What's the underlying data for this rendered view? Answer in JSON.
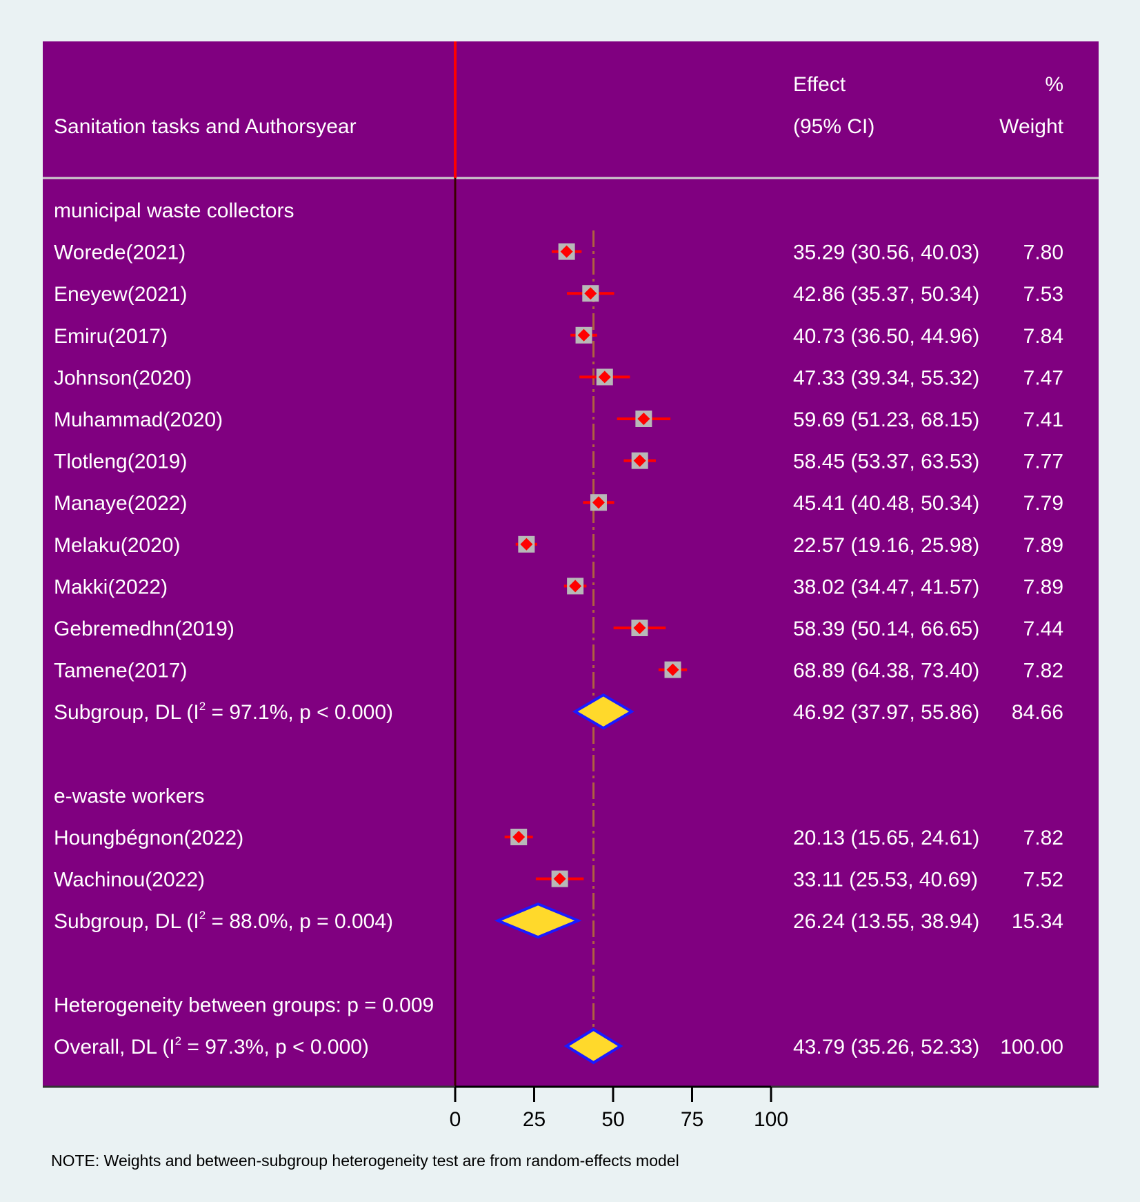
{
  "chart_data": {
    "type": "forest",
    "header": {
      "label_col": "Sanitation tasks and Authorsyear",
      "effect_line1": "Effect",
      "effect_line2": "(95% CI)",
      "weight_line1": "%",
      "weight_line2": "Weight"
    },
    "colors": {
      "plot_bg": "#800080",
      "page_bg": "#eaf2f3",
      "null_line": "#ff0000",
      "overall_line": "#b06040",
      "ci_line": "#ff0000",
      "weight_box": "#b8b8b8",
      "point": "#ff0000",
      "diamond_fill": "#ffd92b",
      "diamond_stroke": "#1a1aff",
      "text": "#ffffff"
    },
    "xaxis": {
      "min": 0,
      "max": 100,
      "ticks": [
        0,
        25,
        50,
        75,
        100
      ]
    },
    "overall_effect": 43.79,
    "rows": [
      {
        "type": "group",
        "label": "municipal waste collectors"
      },
      {
        "type": "study",
        "label": "Worede(2021)",
        "est": 35.29,
        "lo": 30.56,
        "hi": 40.03,
        "ci_text": "35.29 (30.56, 40.03)",
        "weight": "7.80"
      },
      {
        "type": "study",
        "label": "Eneyew(2021)",
        "est": 42.86,
        "lo": 35.37,
        "hi": 50.34,
        "ci_text": "42.86 (35.37, 50.34)",
        "weight": "7.53"
      },
      {
        "type": "study",
        "label": "Emiru(2017)",
        "est": 40.73,
        "lo": 36.5,
        "hi": 44.96,
        "ci_text": "40.73 (36.50, 44.96)",
        "weight": "7.84"
      },
      {
        "type": "study",
        "label": "Johnson(2020)",
        "est": 47.33,
        "lo": 39.34,
        "hi": 55.32,
        "ci_text": "47.33 (39.34, 55.32)",
        "weight": "7.47"
      },
      {
        "type": "study",
        "label": "Muhammad(2020)",
        "est": 59.69,
        "lo": 51.23,
        "hi": 68.15,
        "ci_text": "59.69 (51.23, 68.15)",
        "weight": "7.41"
      },
      {
        "type": "study",
        "label": "Tlotleng(2019)",
        "est": 58.45,
        "lo": 53.37,
        "hi": 63.53,
        "ci_text": "58.45 (53.37, 63.53)",
        "weight": "7.77"
      },
      {
        "type": "study",
        "label": "Manaye(2022)",
        "est": 45.41,
        "lo": 40.48,
        "hi": 50.34,
        "ci_text": "45.41 (40.48, 50.34)",
        "weight": "7.79"
      },
      {
        "type": "study",
        "label": "Melaku(2020)",
        "est": 22.57,
        "lo": 19.16,
        "hi": 25.98,
        "ci_text": "22.57 (19.16, 25.98)",
        "weight": "7.89"
      },
      {
        "type": "study",
        "label": "Makki(2022)",
        "est": 38.02,
        "lo": 34.47,
        "hi": 41.57,
        "ci_text": "38.02 (34.47, 41.57)",
        "weight": "7.89"
      },
      {
        "type": "study",
        "label": "Gebremedhn(2019)",
        "est": 58.39,
        "lo": 50.14,
        "hi": 66.65,
        "ci_text": "58.39 (50.14, 66.65)",
        "weight": "7.44"
      },
      {
        "type": "study",
        "label": "Tamene(2017)",
        "est": 68.89,
        "lo": 64.38,
        "hi": 73.4,
        "ci_text": "68.89 (64.38, 73.40)",
        "weight": "7.82"
      },
      {
        "type": "subgroup",
        "label_pre": "Subgroup, DL (I",
        "label_post": " = 97.1%, p < 0.000)",
        "est": 46.92,
        "lo": 37.97,
        "hi": 55.86,
        "ci_text": "46.92 (37.97, 55.86)",
        "weight": "84.66"
      },
      {
        "type": "blank"
      },
      {
        "type": "group",
        "label": "e-waste workers"
      },
      {
        "type": "study",
        "label": "Houngbégnon(2022)",
        "est": 20.13,
        "lo": 15.65,
        "hi": 24.61,
        "ci_text": "20.13 (15.65, 24.61)",
        "weight": "7.82"
      },
      {
        "type": "study",
        "label": "Wachinou(2022)",
        "est": 33.11,
        "lo": 25.53,
        "hi": 40.69,
        "ci_text": "33.11 (25.53, 40.69)",
        "weight": "7.52"
      },
      {
        "type": "subgroup",
        "label_pre": "Subgroup, DL (I",
        "label_post": " = 88.0%, p = 0.004)",
        "est": 26.24,
        "lo": 13.55,
        "hi": 38.94,
        "ci_text": "26.24 (13.55, 38.94)",
        "weight": "15.34"
      },
      {
        "type": "blank"
      },
      {
        "type": "het",
        "label": "Heterogeneity between groups: p = 0.009"
      },
      {
        "type": "overall",
        "label_pre": "Overall, DL (I",
        "label_post": " = 97.3%, p < 0.000)",
        "est": 43.79,
        "lo": 35.26,
        "hi": 52.33,
        "ci_text": "43.79 (35.26, 52.33)",
        "weight": "100.00"
      }
    ],
    "superscript": "2",
    "note": "NOTE: Weights and between-subgroup heterogeneity test are from random-effects model"
  }
}
